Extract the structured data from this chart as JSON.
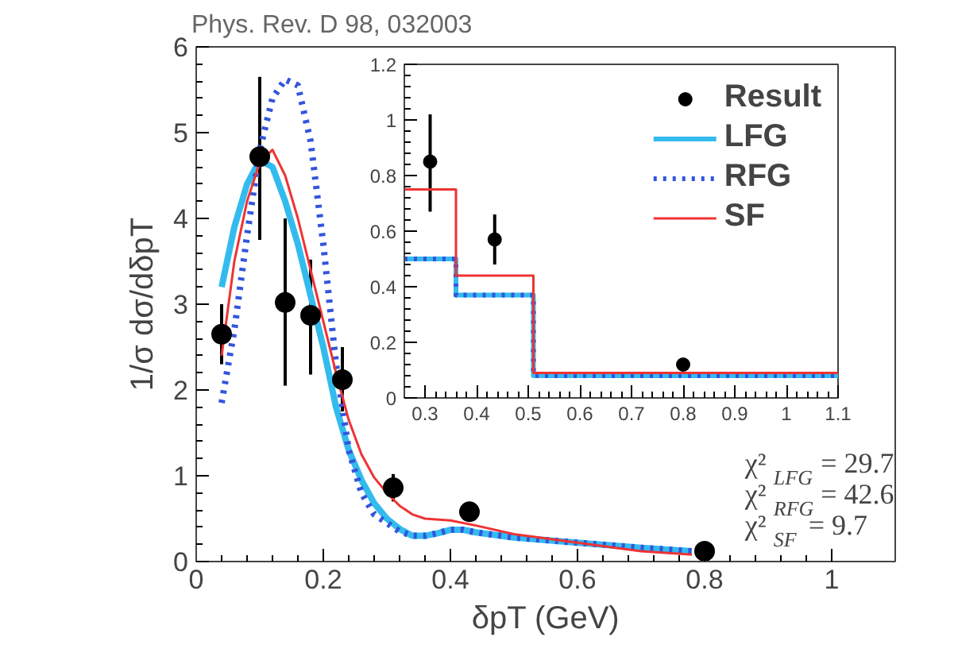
{
  "chart_data": [
    {
      "type": "line",
      "title": "Phys. Rev. D 98, 032003",
      "xlabel": "δpT (GeV)",
      "ylabel": "1/σ dσ/dδpT",
      "xlim": [
        0,
        1.1
      ],
      "ylim": [
        0,
        6
      ],
      "xticks": [
        0,
        0.2,
        0.4,
        0.6,
        0.8,
        1
      ],
      "yticks": [
        0,
        1,
        2,
        3,
        4,
        5,
        6
      ],
      "grid": false,
      "legend": false,
      "annotations": [
        "χ²$_{LFG}$ = 29.7",
        "χ²$_{RFG}$ = 42.6",
        "χ²$_{SF}$ = 9.7"
      ],
      "series": [
        {
          "color": "#33bbee",
          "line_style": "solid",
          "x": [
            0.04,
            0.06,
            0.08,
            0.1,
            0.12,
            0.14,
            0.16,
            0.18,
            0.2,
            0.22,
            0.24,
            0.26,
            0.28,
            0.3,
            0.32,
            0.34,
            0.36,
            0.38,
            0.4,
            0.42,
            0.44,
            0.5,
            0.6,
            0.7,
            0.78
          ],
          "values": [
            3.2,
            3.9,
            4.4,
            4.68,
            4.6,
            4.2,
            3.7,
            3.1,
            2.5,
            1.8,
            1.3,
            0.95,
            0.68,
            0.5,
            0.38,
            0.3,
            0.3,
            0.33,
            0.37,
            0.37,
            0.34,
            0.28,
            0.22,
            0.16,
            0.12
          ]
        },
        {
          "color": "#3355dd",
          "line_style": "dotted",
          "x": [
            0.04,
            0.06,
            0.08,
            0.1,
            0.12,
            0.14,
            0.16,
            0.18,
            0.2,
            0.22,
            0.24,
            0.26,
            0.28,
            0.3,
            0.32,
            0.34,
            0.36,
            0.38,
            0.4,
            0.42,
            0.44,
            0.5,
            0.6,
            0.7,
            0.78
          ],
          "values": [
            1.85,
            2.7,
            3.8,
            4.8,
            5.4,
            5.62,
            5.55,
            4.9,
            3.7,
            2.3,
            1.3,
            0.8,
            0.55,
            0.45,
            0.35,
            0.3,
            0.3,
            0.33,
            0.37,
            0.37,
            0.34,
            0.28,
            0.22,
            0.16,
            0.12
          ]
        },
        {
          "color": "#ee3333",
          "line_style": "solid",
          "x": [
            0.04,
            0.06,
            0.08,
            0.1,
            0.12,
            0.14,
            0.16,
            0.18,
            0.2,
            0.22,
            0.24,
            0.26,
            0.28,
            0.3,
            0.32,
            0.34,
            0.36,
            0.4,
            0.44,
            0.5,
            0.6,
            0.7,
            0.78
          ],
          "values": [
            2.4,
            3.5,
            4.2,
            4.65,
            4.8,
            4.5,
            4.0,
            3.4,
            2.8,
            2.2,
            1.65,
            1.25,
            0.98,
            0.8,
            0.65,
            0.55,
            0.5,
            0.48,
            0.42,
            0.32,
            0.22,
            0.12,
            0.08
          ]
        },
        {
          "type": "scatter",
          "color": "#000000",
          "marker": "circle",
          "x": [
            0.04,
            0.1,
            0.14,
            0.18,
            0.23,
            0.31,
            0.43,
            0.8
          ],
          "values": [
            2.65,
            4.72,
            3.02,
            2.87,
            2.12,
            0.86,
            0.58,
            0.12
          ],
          "errors": [
            [
              2.3,
              3.0
            ],
            [
              3.75,
              5.65
            ],
            [
              2.05,
              4.0
            ],
            [
              2.18,
              3.52
            ],
            [
              1.75,
              2.5
            ],
            [
              0.7,
              1.02
            ],
            null,
            null
          ]
        }
      ]
    },
    {
      "type": "step",
      "xlim": [
        0.26,
        1.1
      ],
      "ylim": [
        0,
        1.2
      ],
      "xticks": [
        0.3,
        0.4,
        0.5,
        0.6,
        0.7,
        0.8,
        0.9,
        1,
        1.1
      ],
      "yticks": [
        0,
        0.2,
        0.4,
        0.6,
        0.8,
        1,
        1.2
      ],
      "grid": false,
      "legend": "top right",
      "series": [
        {
          "type": "scatter",
          "name": "Result",
          "color": "#000000",
          "marker": "circle",
          "x": [
            0.31,
            0.435,
            0.8
          ],
          "values": [
            0.85,
            0.57,
            0.12
          ],
          "errors": [
            [
              0.67,
              1.02
            ],
            [
              0.48,
              0.66
            ],
            [
              0.11,
              0.14
            ]
          ]
        },
        {
          "name": "LFG",
          "color": "#33bbee",
          "line_style": "solid",
          "x": [
            0.26,
            0.36,
            0.51,
            1.1
          ],
          "values": [
            0.5,
            0.37,
            0.08,
            0.08
          ]
        },
        {
          "name": "RFG",
          "color": "#3355dd",
          "line_style": "dotted",
          "x": [
            0.26,
            0.36,
            0.51,
            1.1
          ],
          "values": [
            0.5,
            0.37,
            0.08,
            0.08
          ]
        },
        {
          "name": "SF",
          "color": "#ee3333",
          "line_style": "solid",
          "x": [
            0.26,
            0.36,
            0.51,
            1.1
          ],
          "values": [
            0.75,
            0.44,
            0.09,
            0.09
          ]
        }
      ]
    }
  ]
}
